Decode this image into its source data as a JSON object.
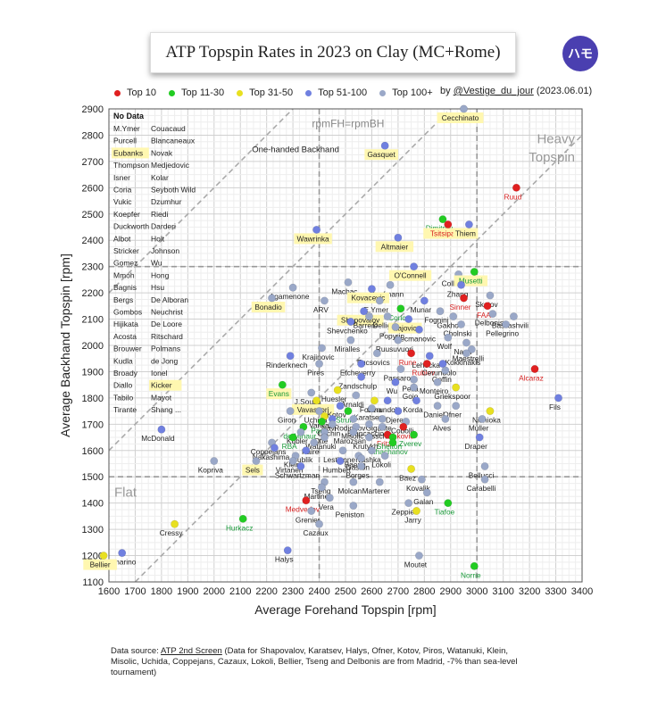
{
  "title": "ATP Topspin Rates in 2023 on Clay (MC+Rome)",
  "logo_text": "ハモ",
  "credit": {
    "prefix": "by",
    "handle": "@Vestige_du_jour",
    "date": "(2023.06.01)"
  },
  "legend": [
    {
      "label": "Top 10",
      "color": "#e02020"
    },
    {
      "label": "Top 11-30",
      "color": "#22cc22"
    },
    {
      "label": "Top 31-50",
      "color": "#e8e020"
    },
    {
      "label": "Top 51-100",
      "color": "#7080e0"
    },
    {
      "label": "Top 100+",
      "color": "#9aa8c8"
    }
  ],
  "footnote": {
    "prefix": "Data source:",
    "source": "ATP 2nd Screen",
    "text": "(Data for Shapovalov, Karatsev, Halys, Ofner, Kotov, Piros, Watanuki, Klein, Misolic, Uchida, Coppejans, Cazaux, Lokoli, Bellier, Tseng and Delbonis are from Madrid, -7% than sea-level tournament)"
  },
  "no_data": {
    "title": "No Data",
    "names": [
      "M.Ymer",
      "Couacaud",
      "Purcell",
      "Blancaneaux",
      "Eubanks",
      "Novak",
      "Thompson",
      "Medjedovic",
      "Isner",
      "Kolar",
      "Coria",
      "Seyboth Wild",
      "Vukic",
      "Dzumhur",
      "Koepfer",
      "Riedi",
      "Duckworth",
      "Darderi",
      "Albot",
      "Holt",
      "Stricker",
      "Johnson",
      "Gomez",
      "Wu",
      "Mmoh",
      "Hong",
      "Bagnis",
      "Hsu",
      "Bergs",
      "De Alboran",
      "Gombos",
      "Neuchrist",
      "Hijikata",
      "De Loore",
      "Acosta",
      "Ritschard",
      "Brouwer",
      "Polmans",
      "Kudla",
      "de Jong",
      "Broady",
      "Ionel",
      "Diallo",
      "Kicker",
      "Tabilo",
      "Mayot",
      "Tirante",
      "Shang ..."
    ],
    "highlighted": [
      "Eubanks",
      "Kicker"
    ]
  },
  "annotations": {
    "diagonal_label": "rpmFH=rpmBH",
    "one_handed": "One-handed Backhand",
    "heavy": "Heavy",
    "topspin": "Topspin",
    "flat": "Flat"
  },
  "chart_data": {
    "type": "scatter",
    "title": "ATP Topspin Rates in 2023 on Clay (MC+Rome)",
    "xlabel": "Average Forehand Topspin [rpm]",
    "ylabel": "Average Backhand Topspin [rpm]",
    "xlim": [
      1600,
      3400
    ],
    "ylim": [
      1100,
      2900
    ],
    "xticks": [
      1600,
      1700,
      1800,
      1900,
      2000,
      2100,
      2200,
      2300,
      2400,
      2500,
      2600,
      2700,
      2800,
      2900,
      3000,
      3100,
      3200,
      3300,
      3400
    ],
    "yticks": [
      1100,
      1200,
      1300,
      1400,
      1500,
      1600,
      1700,
      1800,
      1900,
      2000,
      2100,
      2200,
      2300,
      2400,
      2500,
      2600,
      2700,
      2800,
      2900
    ],
    "grid": true,
    "reference_lines": {
      "x_mean": 2400,
      "x_high": 3000,
      "y_low": 1500,
      "y_high": 2300
    },
    "legend_placement": "top",
    "categories": {
      "top10": "#e02020",
      "top11_30": "#22cc22",
      "top31_50": "#e8e020",
      "top51_100": "#7080e0",
      "top100plus": "#9aa8c8"
    },
    "points": [
      {
        "name": "Cecchinato",
        "x": 2950,
        "y": 2900,
        "cat": "top100plus",
        "hl": true
      },
      {
        "name": "Gasquet",
        "x": 2650,
        "y": 2760,
        "cat": "top51_100",
        "hl": true
      },
      {
        "name": "Ruud",
        "x": 3150,
        "y": 2600,
        "cat": "top10"
      },
      {
        "name": "Dimitrov",
        "x": 2870,
        "y": 2480,
        "cat": "top11_30"
      },
      {
        "name": "Tsitsipas",
        "x": 2890,
        "y": 2460,
        "cat": "top10",
        "hl": true
      },
      {
        "name": "Thiem",
        "x": 2970,
        "y": 2460,
        "cat": "top51_100",
        "hl": true
      },
      {
        "name": "Wawrinka",
        "x": 2390,
        "y": 2440,
        "cat": "top51_100",
        "hl": true
      },
      {
        "name": "Altmaier",
        "x": 2700,
        "y": 2410,
        "cat": "top51_100",
        "hl": true
      },
      {
        "name": "O'Connell",
        "x": 2760,
        "y": 2300,
        "cat": "top51_100",
        "hl": true
      },
      {
        "name": "Collarini",
        "x": 2930,
        "y": 2270,
        "cat": "top100plus"
      },
      {
        "name": "Musetti",
        "x": 2990,
        "y": 2280,
        "cat": "top11_30",
        "hl": true
      },
      {
        "name": "Machac",
        "x": 2510,
        "y": 2240,
        "cat": "top100plus"
      },
      {
        "name": "Hanfmann",
        "x": 2670,
        "y": 2230,
        "cat": "top100plus"
      },
      {
        "name": "Zhang",
        "x": 2940,
        "y": 2230,
        "cat": "top51_100"
      },
      {
        "name": "Kovacevic",
        "x": 2600,
        "y": 2215,
        "cat": "top51_100",
        "hl": true
      },
      {
        "name": "Agamenone",
        "x": 2300,
        "y": 2220,
        "cat": "top100plus"
      },
      {
        "name": "Skatov",
        "x": 3050,
        "y": 2190,
        "cat": "top100plus"
      },
      {
        "name": "Sinner",
        "x": 2950,
        "y": 2180,
        "cat": "top10"
      },
      {
        "name": "Bonadio",
        "x": 2220,
        "y": 2180,
        "cat": "top100plus",
        "hl": true
      },
      {
        "name": "ARV",
        "x": 2420,
        "y": 2170,
        "cat": "top100plus"
      },
      {
        "name": "E.Ymer",
        "x": 2630,
        "y": 2170,
        "cat": "top100plus"
      },
      {
        "name": "Munar",
        "x": 2800,
        "y": 2170,
        "cat": "top51_100"
      },
      {
        "name": "FAA",
        "x": 3040,
        "y": 2150,
        "cat": "top10"
      },
      {
        "name": "Shapovalov",
        "x": 2570,
        "y": 2130,
        "cat": "top51_100",
        "hl": true
      },
      {
        "name": "Coric",
        "x": 2710,
        "y": 2140,
        "cat": "top11_30"
      },
      {
        "name": "Fognini",
        "x": 2860,
        "y": 2130,
        "cat": "top100plus"
      },
      {
        "name": "Delbonis",
        "x": 3060,
        "y": 2120,
        "cat": "top100plus"
      },
      {
        "name": "Gakhov",
        "x": 2910,
        "y": 2110,
        "cat": "top100plus"
      },
      {
        "name": "Basilashvili",
        "x": 3140,
        "y": 2110,
        "cat": "top100plus"
      },
      {
        "name": "Barrere",
        "x": 2590,
        "y": 2110,
        "cat": "top100plus"
      },
      {
        "name": "Dellien",
        "x": 2660,
        "y": 2110,
        "cat": "top100plus"
      },
      {
        "name": "Lajovic",
        "x": 2740,
        "y": 2100,
        "cat": "top51_100",
        "hl": true
      },
      {
        "name": "Shevchenko",
        "x": 2520,
        "y": 2090,
        "cat": "top51_100"
      },
      {
        "name": "Cholnski",
        "x": 2940,
        "y": 2080,
        "cat": "top100plus"
      },
      {
        "name": "Pellegrino",
        "x": 3110,
        "y": 2080,
        "cat": "top100plus"
      },
      {
        "name": "Popyrin",
        "x": 2690,
        "y": 2070,
        "cat": "top100plus"
      },
      {
        "name": "Kecmanovic",
        "x": 2780,
        "y": 2060,
        "cat": "top51_100"
      },
      {
        "name": "Miralles",
        "x": 2520,
        "y": 2020,
        "cat": "top100plus"
      },
      {
        "name": "Ruusuvuori",
        "x": 2700,
        "y": 2020,
        "cat": "top100plus"
      },
      {
        "name": "Wolf",
        "x": 2890,
        "y": 2030,
        "cat": "top100plus"
      },
      {
        "name": "Nardi",
        "x": 2960,
        "y": 2010,
        "cat": "top100plus"
      },
      {
        "name": "Krajinovic",
        "x": 2410,
        "y": 1990,
        "cat": "top100plus"
      },
      {
        "name": "Maestrelli",
        "x": 2980,
        "y": 1985,
        "cat": "top100plus"
      },
      {
        "name": "Kokkinakis",
        "x": 2960,
        "y": 1970,
        "cat": "top100plus"
      },
      {
        "name": "Fucsovics",
        "x": 2620,
        "y": 1970,
        "cat": "top100plus"
      },
      {
        "name": "Rune",
        "x": 2750,
        "y": 1970,
        "cat": "top10"
      },
      {
        "name": "Lehecka",
        "x": 2820,
        "y": 1960,
        "cat": "top51_100"
      },
      {
        "name": "Rinderknech",
        "x": 2290,
        "y": 1960,
        "cat": "top51_100"
      },
      {
        "name": "Pires",
        "x": 2400,
        "y": 1930,
        "cat": "top100plus"
      },
      {
        "name": "Etcheverry",
        "x": 2560,
        "y": 1930,
        "cat": "top51_100"
      },
      {
        "name": "Rublev",
        "x": 2810,
        "y": 1930,
        "cat": "top10"
      },
      {
        "name": "Cerundolo",
        "x": 2870,
        "y": 1930,
        "cat": "top51_100"
      },
      {
        "name": "Passaro",
        "x": 2710,
        "y": 1910,
        "cat": "top100plus"
      },
      {
        "name": "Goffin",
        "x": 2880,
        "y": 1905,
        "cat": "top100plus"
      },
      {
        "name": "Alcaraz",
        "x": 3220,
        "y": 1910,
        "cat": "top10"
      },
      {
        "name": "Zandschulp",
        "x": 2560,
        "y": 1880,
        "cat": "top51_100"
      },
      {
        "name": "Monteiro",
        "x": 2850,
        "y": 1860,
        "cat": "top100plus"
      },
      {
        "name": "Pella",
        "x": 2760,
        "y": 1870,
        "cat": "top100plus"
      },
      {
        "name": "Evans",
        "x": 2260,
        "y": 1850,
        "cat": "top11_30",
        "hl": true
      },
      {
        "name": "Wu",
        "x": 2690,
        "y": 1860,
        "cat": "top51_100"
      },
      {
        "name": "Gojo",
        "x": 2760,
        "y": 1840,
        "cat": "top100plus"
      },
      {
        "name": "Griekspoor",
        "x": 2920,
        "y": 1840,
        "cat": "top31_50"
      },
      {
        "name": "Huesler",
        "x": 2470,
        "y": 1830,
        "cat": "top31_50"
      },
      {
        "name": "J.Sousa",
        "x": 2370,
        "y": 1820,
        "cat": "top100plus"
      },
      {
        "name": "Arnaldi",
        "x": 2540,
        "y": 1810,
        "cat": "top100plus"
      },
      {
        "name": "Fokina",
        "x": 2610,
        "y": 1790,
        "cat": "top31_50"
      },
      {
        "name": "Cerundolo",
        "x": 2660,
        "y": 1790,
        "cat": "top51_100"
      },
      {
        "name": "Korda",
        "x": 2770,
        "y": 1790,
        "cat": "top51_100"
      },
      {
        "name": "Fils",
        "x": 3310,
        "y": 1800,
        "cat": "top51_100"
      },
      {
        "name": "Vavassori",
        "x": 2390,
        "y": 1790,
        "cat": "top31_50",
        "hl": true
      },
      {
        "name": "Kotov",
        "x": 2480,
        "y": 1770,
        "cat": "top51_100"
      },
      {
        "name": "Daniel",
        "x": 2850,
        "y": 1770,
        "cat": "top100plus"
      },
      {
        "name": "Ofner",
        "x": 2920,
        "y": 1770,
        "cat": "top100plus"
      },
      {
        "name": "Giron",
        "x": 2290,
        "y": 1750,
        "cat": "top100plus"
      },
      {
        "name": "Uchida",
        "x": 2400,
        "y": 1750,
        "cat": "top100plus"
      },
      {
        "name": "Struff",
        "x": 2510,
        "y": 1750,
        "cat": "top11_30"
      },
      {
        "name": "Karatsev",
        "x": 2600,
        "y": 1760,
        "cat": "top100plus"
      },
      {
        "name": "Djere",
        "x": 2700,
        "y": 1750,
        "cat": "top51_100"
      },
      {
        "name": "Nishioka",
        "x": 3050,
        "y": 1750,
        "cat": "top31_50"
      },
      {
        "name": "Varillas",
        "x": 2420,
        "y": 1730,
        "cat": "top31_50"
      },
      {
        "name": "Navi",
        "x": 2450,
        "y": 1720,
        "cat": "top51_100"
      },
      {
        "name": "Rodionov",
        "x": 2530,
        "y": 1720,
        "cat": "top100plus"
      },
      {
        "name": "Gigante",
        "x": 2640,
        "y": 1720,
        "cat": "top100plus"
      },
      {
        "name": "Cobolli",
        "x": 2730,
        "y": 1710,
        "cat": "top100plus"
      },
      {
        "name": "Alves",
        "x": 2880,
        "y": 1720,
        "cat": "top100plus"
      },
      {
        "name": "Muller",
        "x": 3020,
        "y": 1720,
        "cat": "top100plus"
      },
      {
        "name": "Paul",
        "x": 2410,
        "y": 1710,
        "cat": "top11_30"
      },
      {
        "name": "Brancaccio",
        "x": 2590,
        "y": 1700,
        "cat": "top100plus"
      },
      {
        "name": "de Minaur",
        "x": 2340,
        "y": 1690,
        "cat": "top11_30"
      },
      {
        "name": "Cachin",
        "x": 2450,
        "y": 1700,
        "cat": "top100plus"
      },
      {
        "name": "Misolic",
        "x": 2540,
        "y": 1690,
        "cat": "top100plus"
      },
      {
        "name": "Assche",
        "x": 2640,
        "y": 1690,
        "cat": "top100plus"
      },
      {
        "name": "Djokovic",
        "x": 2720,
        "y": 1690,
        "cat": "top10"
      },
      {
        "name": "McDonald",
        "x": 1800,
        "y": 1680,
        "cat": "top51_100"
      },
      {
        "name": "Kubler",
        "x": 2330,
        "y": 1670,
        "cat": "top100plus"
      },
      {
        "name": "Otte",
        "x": 2420,
        "y": 1670,
        "cat": "top100plus"
      },
      {
        "name": "Marozsan",
        "x": 2530,
        "y": 1670,
        "cat": "top100plus"
      },
      {
        "name": "Fritz",
        "x": 2660,
        "y": 1660,
        "cat": "top10"
      },
      {
        "name": "Zverev",
        "x": 2760,
        "y": 1660,
        "cat": "top11_30"
      },
      {
        "name": "Draper",
        "x": 3010,
        "y": 1650,
        "cat": "top51_100"
      },
      {
        "name": "RBA",
        "x": 2300,
        "y": 1650,
        "cat": "top11_30"
      },
      {
        "name": "Watanuki",
        "x": 2420,
        "y": 1650,
        "cat": "top100plus"
      },
      {
        "name": "Krutykh",
        "x": 2590,
        "y": 1650,
        "cat": "top100plus"
      },
      {
        "name": "Shelton",
        "x": 2680,
        "y": 1650,
        "cat": "top11_30"
      },
      {
        "name": "Coppejans",
        "x": 2220,
        "y": 1630,
        "cat": "top100plus"
      },
      {
        "name": "Paire",
        "x": 2380,
        "y": 1630,
        "cat": "top100plus"
      },
      {
        "name": "Khachanov",
        "x": 2680,
        "y": 1630,
        "cat": "top11_30"
      },
      {
        "name": "Nakashima",
        "x": 2230,
        "y": 1610,
        "cat": "top51_100"
      },
      {
        "name": "Bublik",
        "x": 2350,
        "y": 1600,
        "cat": "top51_100"
      },
      {
        "name": "Lestienne",
        "x": 2490,
        "y": 1600,
        "cat": "top100plus"
      },
      {
        "name": "Ivashka",
        "x": 2600,
        "y": 1600,
        "cat": "top100plus"
      },
      {
        "name": "Klein",
        "x": 2310,
        "y": 1580,
        "cat": "top100plus"
      },
      {
        "name": "Baena",
        "x": 2550,
        "y": 1580,
        "cat": "top100plus"
      },
      {
        "name": "Lokoli",
        "x": 2650,
        "y": 1580,
        "cat": "top100plus"
      },
      {
        "name": "Kopriva",
        "x": 2000,
        "y": 1560,
        "cat": "top100plus"
      },
      {
        "name": "Sels",
        "x": 2160,
        "y": 1560,
        "cat": "top100plus",
        "hl": true
      },
      {
        "name": "Virtanen",
        "x": 2300,
        "y": 1560,
        "cat": "top100plus"
      },
      {
        "name": "Humbert",
        "x": 2480,
        "y": 1560,
        "cat": "top51_100"
      },
      {
        "name": "Gaston",
        "x": 2560,
        "y": 1570,
        "cat": "top100plus"
      },
      {
        "name": "Bellucci",
        "x": 3030,
        "y": 1540,
        "cat": "top100plus"
      },
      {
        "name": "Schwartzman",
        "x": 2330,
        "y": 1540,
        "cat": "top51_100"
      },
      {
        "name": "Borges",
        "x": 2560,
        "y": 1540,
        "cat": "top100plus"
      },
      {
        "name": "Baez",
        "x": 2750,
        "y": 1530,
        "cat": "top31_50"
      },
      {
        "name": "Kovalik",
        "x": 2790,
        "y": 1490,
        "cat": "top100plus"
      },
      {
        "name": "Carabelli",
        "x": 3030,
        "y": 1490,
        "cat": "top100plus"
      },
      {
        "name": "Tseng",
        "x": 2420,
        "y": 1480,
        "cat": "top100plus"
      },
      {
        "name": "Molcan",
        "x": 2530,
        "y": 1480,
        "cat": "top100plus"
      },
      {
        "name": "Marterer",
        "x": 2630,
        "y": 1480,
        "cat": "top100plus"
      },
      {
        "name": "Martinez",
        "x": 2410,
        "y": 1460,
        "cat": "top100plus"
      },
      {
        "name": "Galan",
        "x": 2810,
        "y": 1440,
        "cat": "top100plus"
      },
      {
        "name": "Medvedev",
        "x": 2350,
        "y": 1410,
        "cat": "top10"
      },
      {
        "name": "Vera",
        "x": 2440,
        "y": 1420,
        "cat": "top100plus"
      },
      {
        "name": "Zeppieri",
        "x": 2740,
        "y": 1400,
        "cat": "top100plus"
      },
      {
        "name": "Tiafoe",
        "x": 2890,
        "y": 1400,
        "cat": "top11_30"
      },
      {
        "name": "Peniston",
        "x": 2530,
        "y": 1390,
        "cat": "top100plus"
      },
      {
        "name": "Grenier",
        "x": 2370,
        "y": 1370,
        "cat": "top100plus"
      },
      {
        "name": "Jarry",
        "x": 2770,
        "y": 1370,
        "cat": "top31_50"
      },
      {
        "name": "Hurkacz",
        "x": 2110,
        "y": 1340,
        "cat": "top11_30"
      },
      {
        "name": "Cazaux",
        "x": 2400,
        "y": 1320,
        "cat": "top100plus"
      },
      {
        "name": "Cressy",
        "x": 1850,
        "y": 1320,
        "cat": "top31_50"
      },
      {
        "name": "Halys",
        "x": 2280,
        "y": 1220,
        "cat": "top51_100"
      },
      {
        "name": "Mannarino",
        "x": 1650,
        "y": 1210,
        "cat": "top51_100"
      },
      {
        "name": "Bellier",
        "x": 1580,
        "y": 1200,
        "cat": "top31_50",
        "hl": true
      },
      {
        "name": "Moutet",
        "x": 2780,
        "y": 1200,
        "cat": "top100plus"
      },
      {
        "name": "Norrie",
        "x": 2990,
        "y": 1160,
        "cat": "top11_30"
      }
    ]
  }
}
